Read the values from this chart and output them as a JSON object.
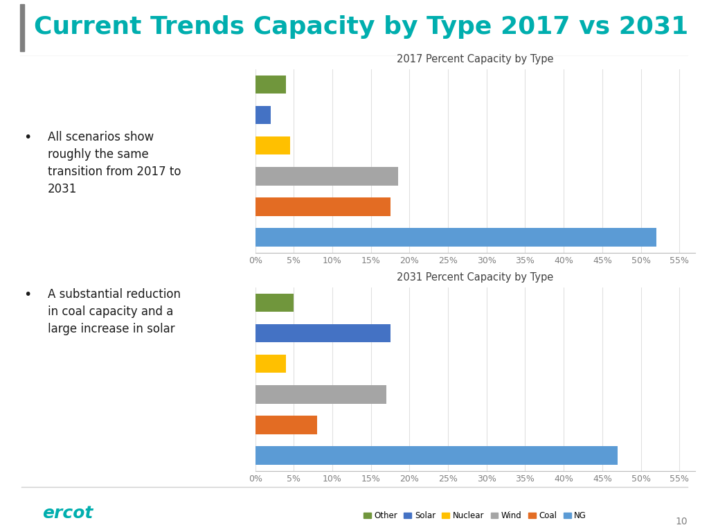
{
  "title": "Current Trends Capacity by Type 2017 vs 2031",
  "title_color": "#00AEAE",
  "chart1_title": "2017 Percent Capacity by Type",
  "chart2_title": "2031 Percent Capacity by Type",
  "bar_colors": {
    "Other": "#70963C",
    "Solar": "#4472C4",
    "Nuclear": "#FFC000",
    "Wind": "#A5A5A5",
    "Coal": "#E36C23",
    "NG": "#5B9BD5"
  },
  "values_2017": {
    "Other": 4.0,
    "Solar": 2.0,
    "Nuclear": 4.5,
    "Wind": 18.5,
    "Coal": 17.5,
    "NG": 52.0
  },
  "values_2031": {
    "Other": 5.0,
    "Solar": 17.5,
    "Nuclear": 4.0,
    "Wind": 17.0,
    "Coal": 8.0,
    "NG": 47.0
  },
  "display_order": [
    "NG",
    "Coal",
    "Wind",
    "Nuclear",
    "Solar",
    "Other"
  ],
  "legend_order": [
    "Other",
    "Solar",
    "Nuclear",
    "Wind",
    "Coal",
    "NG"
  ],
  "xticks": [
    0,
    5,
    10,
    15,
    20,
    25,
    30,
    35,
    40,
    45,
    50,
    55
  ],
  "xticklabels": [
    "0%",
    "5%",
    "10%",
    "15%",
    "20%",
    "25%",
    "30%",
    "35%",
    "40%",
    "45%",
    "50%",
    "55%"
  ],
  "bullet1_line1": "All scenarios show",
  "bullet1_line2": "roughly the same",
  "bullet1_line3": "transition from 2017 to",
  "bullet1_line4": "2031",
  "bullet2_line1": "A substantial reduction",
  "bullet2_line2": "in coal capacity and a",
  "bullet2_line3": "large increase in solar",
  "page_num": "10",
  "bg_color": "#FFFFFF",
  "accent_bar_color": "#7F7F7F",
  "title_underline_color": "#D0D0D0",
  "bottom_line_color": "#D0D0D0",
  "grid_color": "#E0E0E0",
  "tick_color": "#7F7F7F",
  "chart_title_color": "#404040",
  "text_color": "#1A1A1A"
}
